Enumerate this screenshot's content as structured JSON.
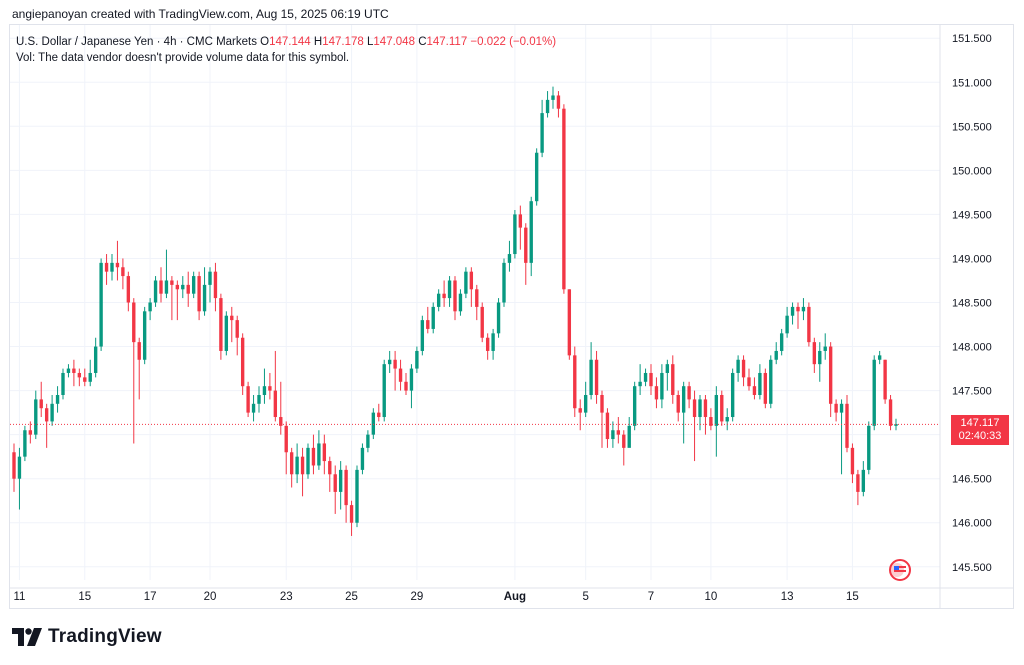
{
  "credit": "angiepanoyan created with TradingView.com, Aug 15, 2025 06:19 UTC",
  "legend": {
    "symbol": "U.S. Dollar / Japanese Yen · 4h · CMC Markets",
    "o_label": "O",
    "o_value": "147.144",
    "h_label": "H",
    "h_value": "147.178",
    "l_label": "L",
    "l_value": "147.048",
    "c_label": "C",
    "c_value": "147.117",
    "change": "−0.022 (−0.01%)",
    "vol_note": "Vol: The data vendor doesn't provide volume data for this symbol."
  },
  "last_price": {
    "value": "147.117",
    "countdown": "02:40:33"
  },
  "brand": {
    "name": "TradingView"
  },
  "colors": {
    "up": "#089981",
    "down": "#f23645",
    "grid": "#f0f3fa",
    "axis_text": "#131722"
  },
  "chart_data": {
    "type": "candlestick",
    "y_ticks": [
      145.5,
      146.0,
      146.5,
      147.0,
      147.5,
      148.0,
      148.5,
      149.0,
      149.5,
      150.0,
      150.5,
      151.0,
      151.5
    ],
    "y_tick_labels": [
      "145.500",
      "146.000",
      "146.500",
      "147.000",
      "147.500",
      "148.000",
      "148.500",
      "149.000",
      "149.500",
      "150.000",
      "150.500",
      "151.000",
      "151.500"
    ],
    "ylim": [
      145.35,
      151.65
    ],
    "x_ticks": [
      {
        "label": "11",
        "index": 1
      },
      {
        "label": "15",
        "index": 13
      },
      {
        "label": "17",
        "index": 25
      },
      {
        "label": "20",
        "index": 36
      },
      {
        "label": "23",
        "index": 50
      },
      {
        "label": "25",
        "index": 62
      },
      {
        "label": "29",
        "index": 74
      },
      {
        "label": "Aug",
        "index": 92
      },
      {
        "label": "5",
        "index": 105
      },
      {
        "label": "7",
        "index": 117
      },
      {
        "label": "10",
        "index": 128
      },
      {
        "label": "13",
        "index": 142
      },
      {
        "label": "15",
        "index": 154
      }
    ],
    "candles": [
      [
        146.8,
        146.5,
        146.9,
        146.35
      ],
      [
        146.5,
        146.75,
        146.85,
        146.15
      ],
      [
        146.75,
        147.05,
        147.1,
        146.7
      ],
      [
        147.05,
        147.0,
        147.15,
        146.9
      ],
      [
        147.0,
        147.4,
        147.5,
        146.95
      ],
      [
        147.4,
        147.3,
        147.6,
        147.2
      ],
      [
        147.3,
        147.15,
        147.35,
        146.85
      ],
      [
        147.15,
        147.35,
        147.45,
        147.1
      ],
      [
        147.35,
        147.45,
        147.55,
        147.25
      ],
      [
        147.45,
        147.7,
        147.75,
        147.4
      ],
      [
        147.7,
        147.75,
        147.8,
        147.65
      ],
      [
        147.75,
        147.7,
        147.85,
        147.55
      ],
      [
        147.7,
        147.65,
        147.75,
        147.55
      ],
      [
        147.65,
        147.6,
        147.75,
        147.55
      ],
      [
        147.6,
        147.7,
        147.85,
        147.55
      ],
      [
        147.7,
        148.0,
        148.1,
        147.65
      ],
      [
        148.0,
        148.95,
        149.0,
        147.95
      ],
      [
        148.95,
        148.85,
        149.05,
        148.7
      ],
      [
        148.85,
        148.95,
        149.05,
        148.75
      ],
      [
        148.95,
        148.9,
        149.2,
        148.75
      ],
      [
        148.9,
        148.8,
        149.0,
        148.65
      ],
      [
        148.8,
        148.5,
        148.85,
        148.4
      ],
      [
        148.5,
        148.05,
        148.55,
        146.9
      ],
      [
        148.05,
        147.85,
        148.1,
        147.4
      ],
      [
        147.85,
        148.4,
        148.45,
        147.8
      ],
      [
        148.4,
        148.5,
        148.55,
        148.3
      ],
      [
        148.5,
        148.75,
        148.8,
        148.45
      ],
      [
        148.75,
        148.6,
        148.9,
        148.5
      ],
      [
        148.6,
        148.75,
        149.1,
        148.55
      ],
      [
        148.75,
        148.7,
        148.8,
        148.3
      ],
      [
        148.7,
        148.65,
        148.75,
        148.3
      ],
      [
        148.65,
        148.7,
        148.8,
        148.55
      ],
      [
        148.7,
        148.6,
        148.85,
        148.45
      ],
      [
        148.6,
        148.8,
        148.85,
        148.55
      ],
      [
        148.8,
        148.4,
        148.85,
        148.3
      ],
      [
        148.4,
        148.7,
        148.9,
        148.35
      ],
      [
        148.7,
        148.85,
        148.9,
        148.5
      ],
      [
        148.85,
        148.55,
        148.95,
        148.4
      ],
      [
        148.55,
        147.95,
        148.6,
        147.85
      ],
      [
        147.95,
        148.35,
        148.4,
        147.9
      ],
      [
        148.35,
        148.3,
        148.45,
        148.05
      ],
      [
        148.3,
        148.1,
        148.35,
        147.9
      ],
      [
        148.1,
        147.55,
        148.15,
        147.45
      ],
      [
        147.55,
        147.25,
        147.6,
        147.2
      ],
      [
        147.25,
        147.35,
        147.45,
        147.15
      ],
      [
        147.35,
        147.45,
        147.55,
        147.25
      ],
      [
        147.45,
        147.55,
        147.75,
        147.35
      ],
      [
        147.55,
        147.5,
        147.7,
        147.4
      ],
      [
        147.5,
        147.2,
        147.95,
        147.15
      ],
      [
        147.2,
        147.1,
        147.6,
        147.0
      ],
      [
        147.1,
        146.8,
        147.15,
        146.55
      ],
      [
        146.8,
        146.55,
        146.85,
        146.4
      ],
      [
        146.55,
        146.75,
        146.9,
        146.45
      ],
      [
        146.75,
        146.55,
        146.85,
        146.3
      ],
      [
        146.55,
        146.85,
        146.9,
        146.5
      ],
      [
        146.85,
        146.65,
        147.0,
        146.55
      ],
      [
        146.65,
        146.9,
        147.05,
        146.6
      ],
      [
        146.9,
        146.7,
        147.0,
        146.55
      ],
      [
        146.7,
        146.55,
        146.75,
        146.35
      ],
      [
        146.55,
        146.35,
        146.65,
        146.1
      ],
      [
        146.35,
        146.6,
        146.7,
        146.15
      ],
      [
        146.6,
        146.2,
        146.65,
        146.0
      ],
      [
        146.2,
        146.0,
        146.25,
        145.85
      ],
      [
        146.0,
        146.6,
        146.65,
        145.95
      ],
      [
        146.6,
        146.85,
        146.9,
        146.55
      ],
      [
        146.85,
        147.0,
        147.05,
        146.8
      ],
      [
        147.0,
        147.25,
        147.3,
        146.95
      ],
      [
        147.25,
        147.2,
        147.35,
        147.15
      ],
      [
        147.2,
        147.8,
        147.85,
        147.15
      ],
      [
        147.8,
        147.85,
        147.95,
        147.7
      ],
      [
        147.85,
        147.75,
        147.95,
        147.5
      ],
      [
        147.75,
        147.6,
        147.85,
        147.5
      ],
      [
        147.6,
        147.5,
        147.7,
        147.45
      ],
      [
        147.5,
        147.75,
        147.8,
        147.3
      ],
      [
        147.75,
        147.95,
        148.0,
        147.7
      ],
      [
        147.95,
        148.3,
        148.35,
        147.9
      ],
      [
        148.3,
        148.2,
        148.45,
        148.15
      ],
      [
        148.2,
        148.45,
        148.5,
        148.15
      ],
      [
        148.45,
        148.6,
        148.65,
        148.4
      ],
      [
        148.6,
        148.55,
        148.75,
        148.45
      ],
      [
        148.55,
        148.75,
        148.8,
        148.45
      ],
      [
        148.75,
        148.4,
        148.8,
        148.3
      ],
      [
        148.4,
        148.6,
        148.65,
        148.35
      ],
      [
        148.6,
        148.85,
        148.9,
        148.55
      ],
      [
        148.85,
        148.65,
        148.9,
        148.45
      ],
      [
        148.65,
        148.45,
        148.7,
        148.3
      ],
      [
        148.45,
        148.1,
        148.5,
        148.05
      ],
      [
        148.1,
        147.95,
        148.15,
        147.85
      ],
      [
        147.95,
        148.15,
        148.2,
        147.85
      ],
      [
        148.15,
        148.5,
        148.55,
        148.1
      ],
      [
        148.5,
        148.95,
        149.0,
        148.45
      ],
      [
        148.95,
        149.05,
        149.2,
        148.85
      ],
      [
        149.05,
        149.5,
        149.55,
        149.0
      ],
      [
        149.5,
        149.35,
        149.6,
        149.1
      ],
      [
        149.35,
        148.95,
        149.4,
        148.7
      ],
      [
        148.95,
        149.65,
        149.7,
        148.8
      ],
      [
        149.65,
        150.2,
        150.25,
        149.6
      ],
      [
        150.2,
        150.65,
        150.8,
        150.15
      ],
      [
        150.65,
        150.8,
        150.9,
        150.6
      ],
      [
        150.8,
        150.85,
        150.95,
        150.7
      ],
      [
        150.85,
        150.7,
        150.9,
        150.6
      ],
      [
        150.7,
        148.65,
        150.75,
        148.6
      ],
      [
        148.65,
        147.9,
        148.65,
        147.85
      ],
      [
        147.9,
        147.3,
        148.0,
        147.2
      ],
      [
        147.3,
        147.25,
        147.4,
        147.05
      ],
      [
        147.25,
        147.45,
        147.6,
        147.2
      ],
      [
        147.45,
        147.85,
        148.05,
        147.4
      ],
      [
        147.85,
        147.45,
        147.95,
        147.35
      ],
      [
        147.45,
        147.25,
        147.5,
        146.85
      ],
      [
        147.25,
        146.95,
        147.3,
        146.85
      ],
      [
        146.95,
        147.05,
        147.15,
        146.85
      ],
      [
        147.05,
        147.0,
        147.2,
        146.9
      ],
      [
        147.0,
        146.85,
        147.05,
        146.65
      ],
      [
        146.85,
        147.1,
        147.2,
        146.95
      ],
      [
        147.1,
        147.55,
        147.6,
        147.05
      ],
      [
        147.55,
        147.6,
        147.8,
        147.45
      ],
      [
        147.6,
        147.7,
        147.75,
        147.55
      ],
      [
        147.7,
        147.55,
        147.8,
        147.45
      ],
      [
        147.55,
        147.4,
        147.65,
        147.3
      ],
      [
        147.4,
        147.7,
        147.8,
        147.3
      ],
      [
        147.7,
        147.8,
        147.85,
        147.5
      ],
      [
        147.8,
        147.45,
        147.9,
        147.35
      ],
      [
        147.45,
        147.25,
        147.5,
        147.15
      ],
      [
        147.25,
        147.55,
        147.6,
        146.9
      ],
      [
        147.55,
        147.4,
        147.6,
        147.3
      ],
      [
        147.4,
        147.2,
        147.5,
        146.7
      ],
      [
        147.2,
        147.4,
        147.45,
        147.05
      ],
      [
        147.4,
        147.2,
        147.45,
        147.0
      ],
      [
        147.2,
        147.1,
        147.3,
        147.05
      ],
      [
        147.1,
        147.45,
        147.55,
        146.75
      ],
      [
        147.45,
        147.15,
        147.5,
        147.1
      ],
      [
        147.15,
        147.2,
        147.3,
        147.05
      ],
      [
        147.2,
        147.7,
        147.75,
        147.15
      ],
      [
        147.7,
        147.85,
        147.9,
        147.6
      ],
      [
        147.85,
        147.65,
        147.9,
        147.55
      ],
      [
        147.65,
        147.55,
        147.75,
        147.5
      ],
      [
        147.55,
        147.45,
        147.65,
        147.4
      ],
      [
        147.45,
        147.7,
        147.8,
        147.4
      ],
      [
        147.7,
        147.35,
        147.75,
        147.3
      ],
      [
        147.35,
        147.85,
        147.9,
        147.3
      ],
      [
        147.85,
        147.95,
        148.05,
        147.8
      ],
      [
        147.95,
        148.15,
        148.2,
        147.9
      ],
      [
        148.15,
        148.35,
        148.45,
        148.1
      ],
      [
        148.35,
        148.45,
        148.5,
        148.25
      ],
      [
        148.45,
        148.4,
        148.5,
        148.2
      ],
      [
        148.4,
        148.45,
        148.55,
        148.3
      ],
      [
        148.45,
        148.05,
        148.5,
        148.0
      ],
      [
        148.05,
        147.8,
        148.1,
        147.7
      ],
      [
        147.8,
        147.95,
        148.05,
        147.6
      ],
      [
        147.95,
        148.0,
        148.15,
        147.85
      ],
      [
        148.0,
        147.35,
        148.05,
        147.2
      ],
      [
        147.35,
        147.25,
        147.4,
        147.15
      ],
      [
        147.25,
        147.35,
        147.4,
        146.55
      ],
      [
        147.35,
        146.85,
        147.45,
        146.8
      ],
      [
        146.85,
        146.55,
        146.9,
        146.45
      ],
      [
        146.55,
        146.35,
        146.6,
        146.2
      ],
      [
        146.35,
        146.6,
        146.7,
        146.3
      ],
      [
        146.6,
        147.1,
        147.15,
        146.55
      ],
      [
        147.1,
        147.85,
        147.9,
        147.05
      ],
      [
        147.85,
        147.9,
        147.95,
        147.8
      ],
      [
        147.85,
        147.4,
        147.85,
        147.35
      ],
      [
        147.4,
        147.1,
        147.45,
        147.05
      ],
      [
        147.1,
        147.12,
        147.18,
        147.05
      ]
    ]
  }
}
